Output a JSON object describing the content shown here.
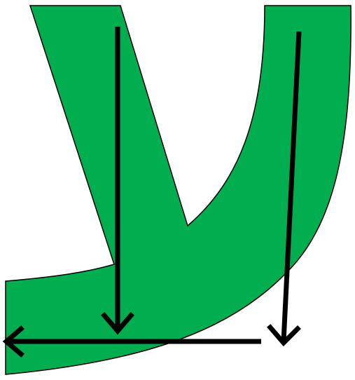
{
  "diagram": {
    "shape": "curved-y-shape",
    "fill_color": "#00AD4F",
    "outline_color": "#000000",
    "arrow_color": "#000000",
    "background_color": "#FFFFFF",
    "arrows": [
      {
        "id": "left-vertical-arrow",
        "direction": "down"
      },
      {
        "id": "right-vertical-arrow",
        "direction": "down"
      },
      {
        "id": "horizontal-arrow",
        "direction": "left"
      }
    ]
  }
}
